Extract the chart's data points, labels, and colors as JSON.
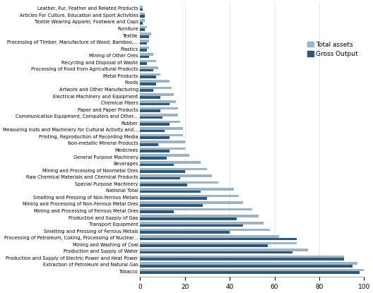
{
  "categories": [
    "Leather, Fur, Feather and Related Products",
    "Articles For Culture, Education and Sport Activities",
    "Textile Wearing Apparel, Footware and Caps",
    "Furniture",
    "Textile",
    "Processing of Timber, Manufacture of Wood, Bamboo,...",
    "Plastics",
    "Mining of Other Ores",
    "Recycling and Disposal of Waste",
    "Processing of Food from Agricultural Products",
    "Metal Products",
    "Foods",
    "Artwork and Other Manufacturing",
    "Electrical Machinery and Equipment",
    "Chemical Fibers",
    "Paper and Paper Products",
    "Communication Equipment, Computers and Other...",
    "Rubber",
    "Measuring Insts and Machinery for Cultural Activity and...",
    "Printing, Reproduction of Recording Media",
    "Non-metallic Mineral Products",
    "Medicines",
    "General Purpose Machinery",
    "Beverages",
    "Mining and Processing of Nonmetal Ores",
    "Raw Chemical Materials and Chemical Products",
    "Special Purpose Machinery",
    "National Total",
    "Smelting and Pressing of Non-ferrous Metals",
    "Mining and Processing of Non-Ferrous Metal Ores",
    "Mining and Processing of Ferrous Metal Ores",
    "Production and Supply of Gas",
    "Transport Equipment",
    "Smelting and Pressing of Ferrous Metals",
    "Processing of Petroleum, Coking, Processing of Nuclear...",
    "Mining and Washing of Coal",
    "Production and Supply of Water",
    "Production and Supply of Electric Power and Heat Power",
    "Extraction of Petroleum and Natural Gas",
    "Tobacco"
  ],
  "total_assets": [
    1,
    2,
    2,
    3,
    5,
    4,
    4,
    6,
    7,
    8,
    9,
    13,
    14,
    15,
    16,
    17,
    17,
    18,
    19,
    19,
    20,
    20,
    22,
    27,
    30,
    32,
    35,
    42,
    44,
    46,
    50,
    53,
    55,
    58,
    62,
    70,
    75,
    91,
    97,
    100
  ],
  "gross_output": [
    1,
    2,
    1,
    2,
    4,
    3,
    3,
    4,
    3,
    6,
    7,
    7,
    6,
    9,
    13,
    9,
    10,
    13,
    11,
    13,
    8,
    13,
    12,
    15,
    20,
    18,
    21,
    27,
    30,
    28,
    15,
    43,
    46,
    40,
    70,
    57,
    68,
    91,
    95,
    98
  ],
  "color_total_assets": "#9cb4c4",
  "color_gross_output": "#2d5878",
  "legend_total_assets": "Total assets",
  "legend_gross_output": "Gross Output",
  "xlim": [
    0,
    100
  ],
  "xticks": [
    0,
    20,
    40,
    60,
    80,
    100
  ],
  "bar_height": 0.38,
  "label_fontsize": 4.8,
  "tick_fontsize": 6.5
}
